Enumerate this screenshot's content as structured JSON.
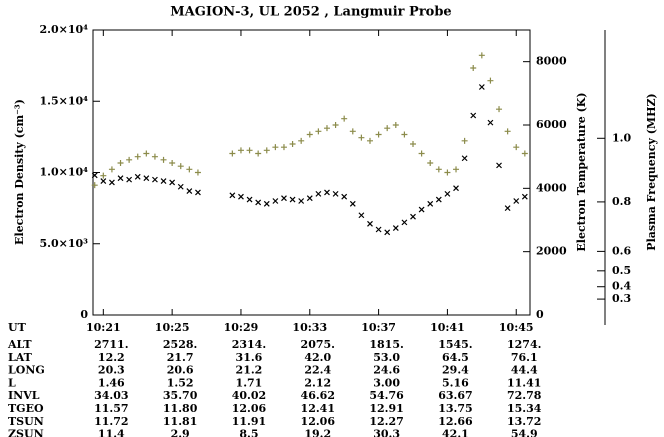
{
  "chart_data": {
    "type": "scatter",
    "title": "MAGION-3,   UL 2052 ,   Langmuir Probe",
    "ylabel": "Electron Density (cm⁻³)",
    "y2label": "Electron Temperature (K)",
    "y3label": "Plasma Frequency (MHZ)",
    "xlim": [
      620.4,
      645.8
    ],
    "xticks": [
      {
        "value": 621,
        "label": "10:21"
      },
      {
        "value": 625,
        "label": "10:25"
      },
      {
        "value": 629,
        "label": "10:29"
      },
      {
        "value": 633,
        "label": "10:33"
      },
      {
        "value": 637,
        "label": "10:37"
      },
      {
        "value": 641,
        "label": "10:41"
      },
      {
        "value": 645,
        "label": "10:45"
      }
    ],
    "ylim": [
      0,
      20000
    ],
    "yticks": [
      0,
      {
        "value": 5000,
        "label": "5.0×10³"
      },
      {
        "value": 10000,
        "label": "1.0×10⁴"
      },
      {
        "value": 15000,
        "label": "1.5×10⁴"
      },
      {
        "value": 20000,
        "label": "2.0×10⁴"
      }
    ],
    "y2lim": [
      0,
      9000
    ],
    "y2ticks": [
      0,
      2000,
      4000,
      6000,
      8000
    ],
    "y3ticks": [
      0.3,
      0.4,
      0.5,
      0.6,
      0.8,
      {
        "value": 1.0,
        "label": "1.0"
      }
    ],
    "x": [
      620.5,
      621,
      621.5,
      622,
      622.5,
      623,
      623.5,
      624,
      624.5,
      625,
      625.5,
      626,
      626.5,
      628.5,
      629,
      629.5,
      630,
      630.5,
      631,
      631.5,
      632,
      632.5,
      633,
      633.5,
      634,
      634.5,
      635,
      635.5,
      636,
      636.5,
      637,
      637.5,
      638,
      638.5,
      639,
      639.5,
      640,
      640.5,
      641,
      641.5,
      642,
      642.5,
      643,
      643.5,
      644,
      644.5,
      645,
      645.5
    ],
    "series": [
      {
        "name": "Electron Density",
        "marker": "x",
        "color": "#000000",
        "values": [
          9800,
          9400,
          9300,
          9600,
          9500,
          9700,
          9600,
          9500,
          9400,
          9300,
          9000,
          8700,
          8600,
          8400,
          8300,
          8100,
          7900,
          7800,
          8000,
          8200,
          8100,
          8000,
          8200,
          8500,
          8600,
          8500,
          8300,
          7800,
          7000,
          6400,
          6000,
          5800,
          6100,
          6500,
          6900,
          7400,
          7800,
          8100,
          8500,
          8900,
          11000,
          14000,
          16000,
          13500,
          10500,
          7500,
          8000,
          8300
        ]
      },
      {
        "name": "Electron Temperature",
        "marker": "+",
        "color": "#8b8b4a",
        "axis": "y2",
        "values": [
          4100,
          4400,
          4600,
          4800,
          4900,
          5000,
          5100,
          5000,
          4900,
          4800,
          4700,
          4600,
          4500,
          5100,
          5200,
          5200,
          5100,
          5200,
          5300,
          5300,
          5400,
          5500,
          5700,
          5800,
          5900,
          6000,
          6200,
          5800,
          5600,
          5500,
          5700,
          5900,
          6000,
          5700,
          5400,
          5100,
          4800,
          4600,
          4500,
          4600,
          5500,
          7800,
          8200,
          7400,
          6500,
          5800,
          5300,
          5100
        ]
      }
    ]
  },
  "table": {
    "ut_label": "UT",
    "rows": [
      {
        "label": "ALT",
        "values": [
          "2711.",
          "2528.",
          "2314.",
          "2075.",
          "1815.",
          "1545.",
          "1274."
        ]
      },
      {
        "label": "LAT",
        "values": [
          "12.2",
          "21.7",
          "31.6",
          "42.0",
          "53.0",
          "64.5",
          "76.1"
        ]
      },
      {
        "label": "LONG",
        "values": [
          "20.3",
          "20.6",
          "21.2",
          "22.4",
          "24.6",
          "29.4",
          "44.4"
        ]
      },
      {
        "label": "L",
        "values": [
          "1.46",
          "1.52",
          "1.71",
          "2.12",
          "3.00",
          "5.16",
          "11.41"
        ]
      },
      {
        "label": "INVL",
        "values": [
          "34.03",
          "35.70",
          "40.02",
          "46.62",
          "54.76",
          "63.67",
          "72.78"
        ]
      },
      {
        "label": "TGEO",
        "values": [
          "11.57",
          "11.80",
          "12.06",
          "12.41",
          "12.91",
          "13.75",
          "15.34"
        ]
      },
      {
        "label": "TSUN",
        "values": [
          "11.72",
          "11.81",
          "11.91",
          "12.06",
          "12.27",
          "12.66",
          "13.72"
        ]
      },
      {
        "label": "ZSUN",
        "values": [
          "11.4",
          "2.9",
          "8.5",
          "19.2",
          "30.3",
          "42.1",
          "54.9"
        ]
      }
    ]
  }
}
